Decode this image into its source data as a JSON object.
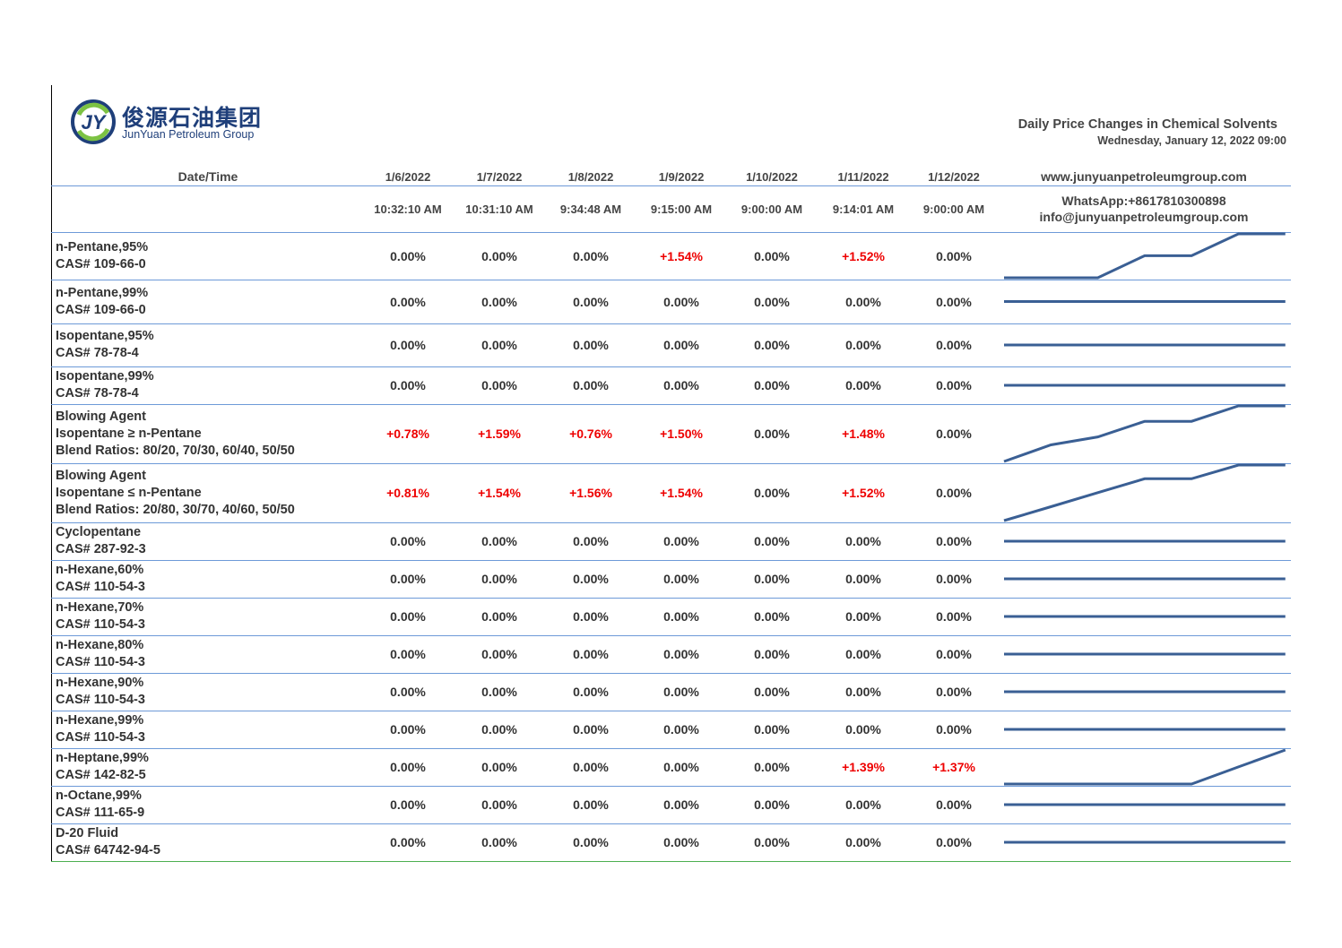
{
  "logo": {
    "cn": "俊源石油集团",
    "en": "JunYuan Petroleum Group",
    "mark": "JY"
  },
  "report": {
    "title": "Daily Price Changes in Chemical Solvents",
    "subtitle": "Wednesday, January 12, 2022 09:00"
  },
  "header": {
    "date_time_label": "Date/Time",
    "dates": [
      "1/6/2022",
      "1/7/2022",
      "1/8/2022",
      "1/9/2022",
      "1/10/2022",
      "1/11/2022",
      "1/12/2022"
    ],
    "times": [
      "10:32:10 AM",
      "10:31:10 AM",
      "9:34:48 AM",
      "9:15:00 AM",
      "9:00:00 AM",
      "9:14:01 AM",
      "9:00:00 AM"
    ],
    "website": "www.junyuanpetroleumgroup.com",
    "whatsapp": "WhatsApp:+8617810300898",
    "email": "info@junyuanpetroleumgroup.com"
  },
  "colors": {
    "increase": "#ee0000",
    "neutral": "#333333",
    "sparkline": "#3a5f94",
    "grid": "#6d9ad8"
  },
  "rows": [
    {
      "lines": [
        "n-Pentane,95%",
        "CAS# 109-66-0"
      ],
      "changes": [
        "0.00%",
        "0.00%",
        "0.00%",
        "+1.54%",
        "0.00%",
        "+1.52%",
        "0.00%"
      ]
    },
    {
      "lines": [
        "n-Pentane,99%",
        "CAS# 109-66-0"
      ],
      "changes": [
        "0.00%",
        "0.00%",
        "0.00%",
        "0.00%",
        "0.00%",
        "0.00%",
        "0.00%"
      ]
    },
    {
      "lines": [
        "Isopentane,95%",
        "CAS# 78-78-4"
      ],
      "changes": [
        "0.00%",
        "0.00%",
        "0.00%",
        "0.00%",
        "0.00%",
        "0.00%",
        "0.00%"
      ]
    },
    {
      "lines": [
        "Isopentane,99%",
        "CAS# 78-78-4"
      ],
      "changes": [
        "0.00%",
        "0.00%",
        "0.00%",
        "0.00%",
        "0.00%",
        "0.00%",
        "0.00%"
      ]
    },
    {
      "lines": [
        "Blowing Agent",
        "Isopentane ≥ n-Pentane",
        "Blend Ratios: 80/20, 70/30, 60/40, 50/50"
      ],
      "changes": [
        "+0.78%",
        "+1.59%",
        "+0.76%",
        "+1.50%",
        "0.00%",
        "+1.48%",
        "0.00%"
      ]
    },
    {
      "lines": [
        "Blowing Agent",
        "Isopentane ≤ n-Pentane",
        "Blend Ratios: 20/80, 30/70, 40/60, 50/50"
      ],
      "changes": [
        "+0.81%",
        "+1.54%",
        "+1.56%",
        "+1.54%",
        "0.00%",
        "+1.52%",
        "0.00%"
      ]
    },
    {
      "lines": [
        "Cyclopentane",
        "CAS# 287-92-3"
      ],
      "changes": [
        "0.00%",
        "0.00%",
        "0.00%",
        "0.00%",
        "0.00%",
        "0.00%",
        "0.00%"
      ]
    },
    {
      "lines": [
        "n-Hexane,60%",
        "CAS# 110-54-3"
      ],
      "changes": [
        "0.00%",
        "0.00%",
        "0.00%",
        "0.00%",
        "0.00%",
        "0.00%",
        "0.00%"
      ]
    },
    {
      "lines": [
        "n-Hexane,70%",
        "CAS# 110-54-3"
      ],
      "changes": [
        "0.00%",
        "0.00%",
        "0.00%",
        "0.00%",
        "0.00%",
        "0.00%",
        "0.00%"
      ]
    },
    {
      "lines": [
        "n-Hexane,80%",
        "CAS# 110-54-3"
      ],
      "changes": [
        "0.00%",
        "0.00%",
        "0.00%",
        "0.00%",
        "0.00%",
        "0.00%",
        "0.00%"
      ]
    },
    {
      "lines": [
        "n-Hexane,90%",
        "CAS# 110-54-3"
      ],
      "changes": [
        "0.00%",
        "0.00%",
        "0.00%",
        "0.00%",
        "0.00%",
        "0.00%",
        "0.00%"
      ]
    },
    {
      "lines": [
        "n-Hexane,99%",
        "CAS# 110-54-3"
      ],
      "changes": [
        "0.00%",
        "0.00%",
        "0.00%",
        "0.00%",
        "0.00%",
        "0.00%",
        "0.00%"
      ]
    },
    {
      "lines": [
        "n-Heptane,99%",
        "CAS# 142-82-5"
      ],
      "changes": [
        "0.00%",
        "0.00%",
        "0.00%",
        "0.00%",
        "0.00%",
        "+1.39%",
        "+1.37%"
      ]
    },
    {
      "lines": [
        "n-Octane,99%",
        "CAS# 111-65-9"
      ],
      "changes": [
        "0.00%",
        "0.00%",
        "0.00%",
        "0.00%",
        "0.00%",
        "0.00%",
        "0.00%"
      ]
    },
    {
      "lines": [
        "D-20 Fluid",
        "CAS# 64742-94-5"
      ],
      "changes": [
        "0.00%",
        "0.00%",
        "0.00%",
        "0.00%",
        "0.00%",
        "0.00%",
        "0.00%"
      ]
    }
  ]
}
